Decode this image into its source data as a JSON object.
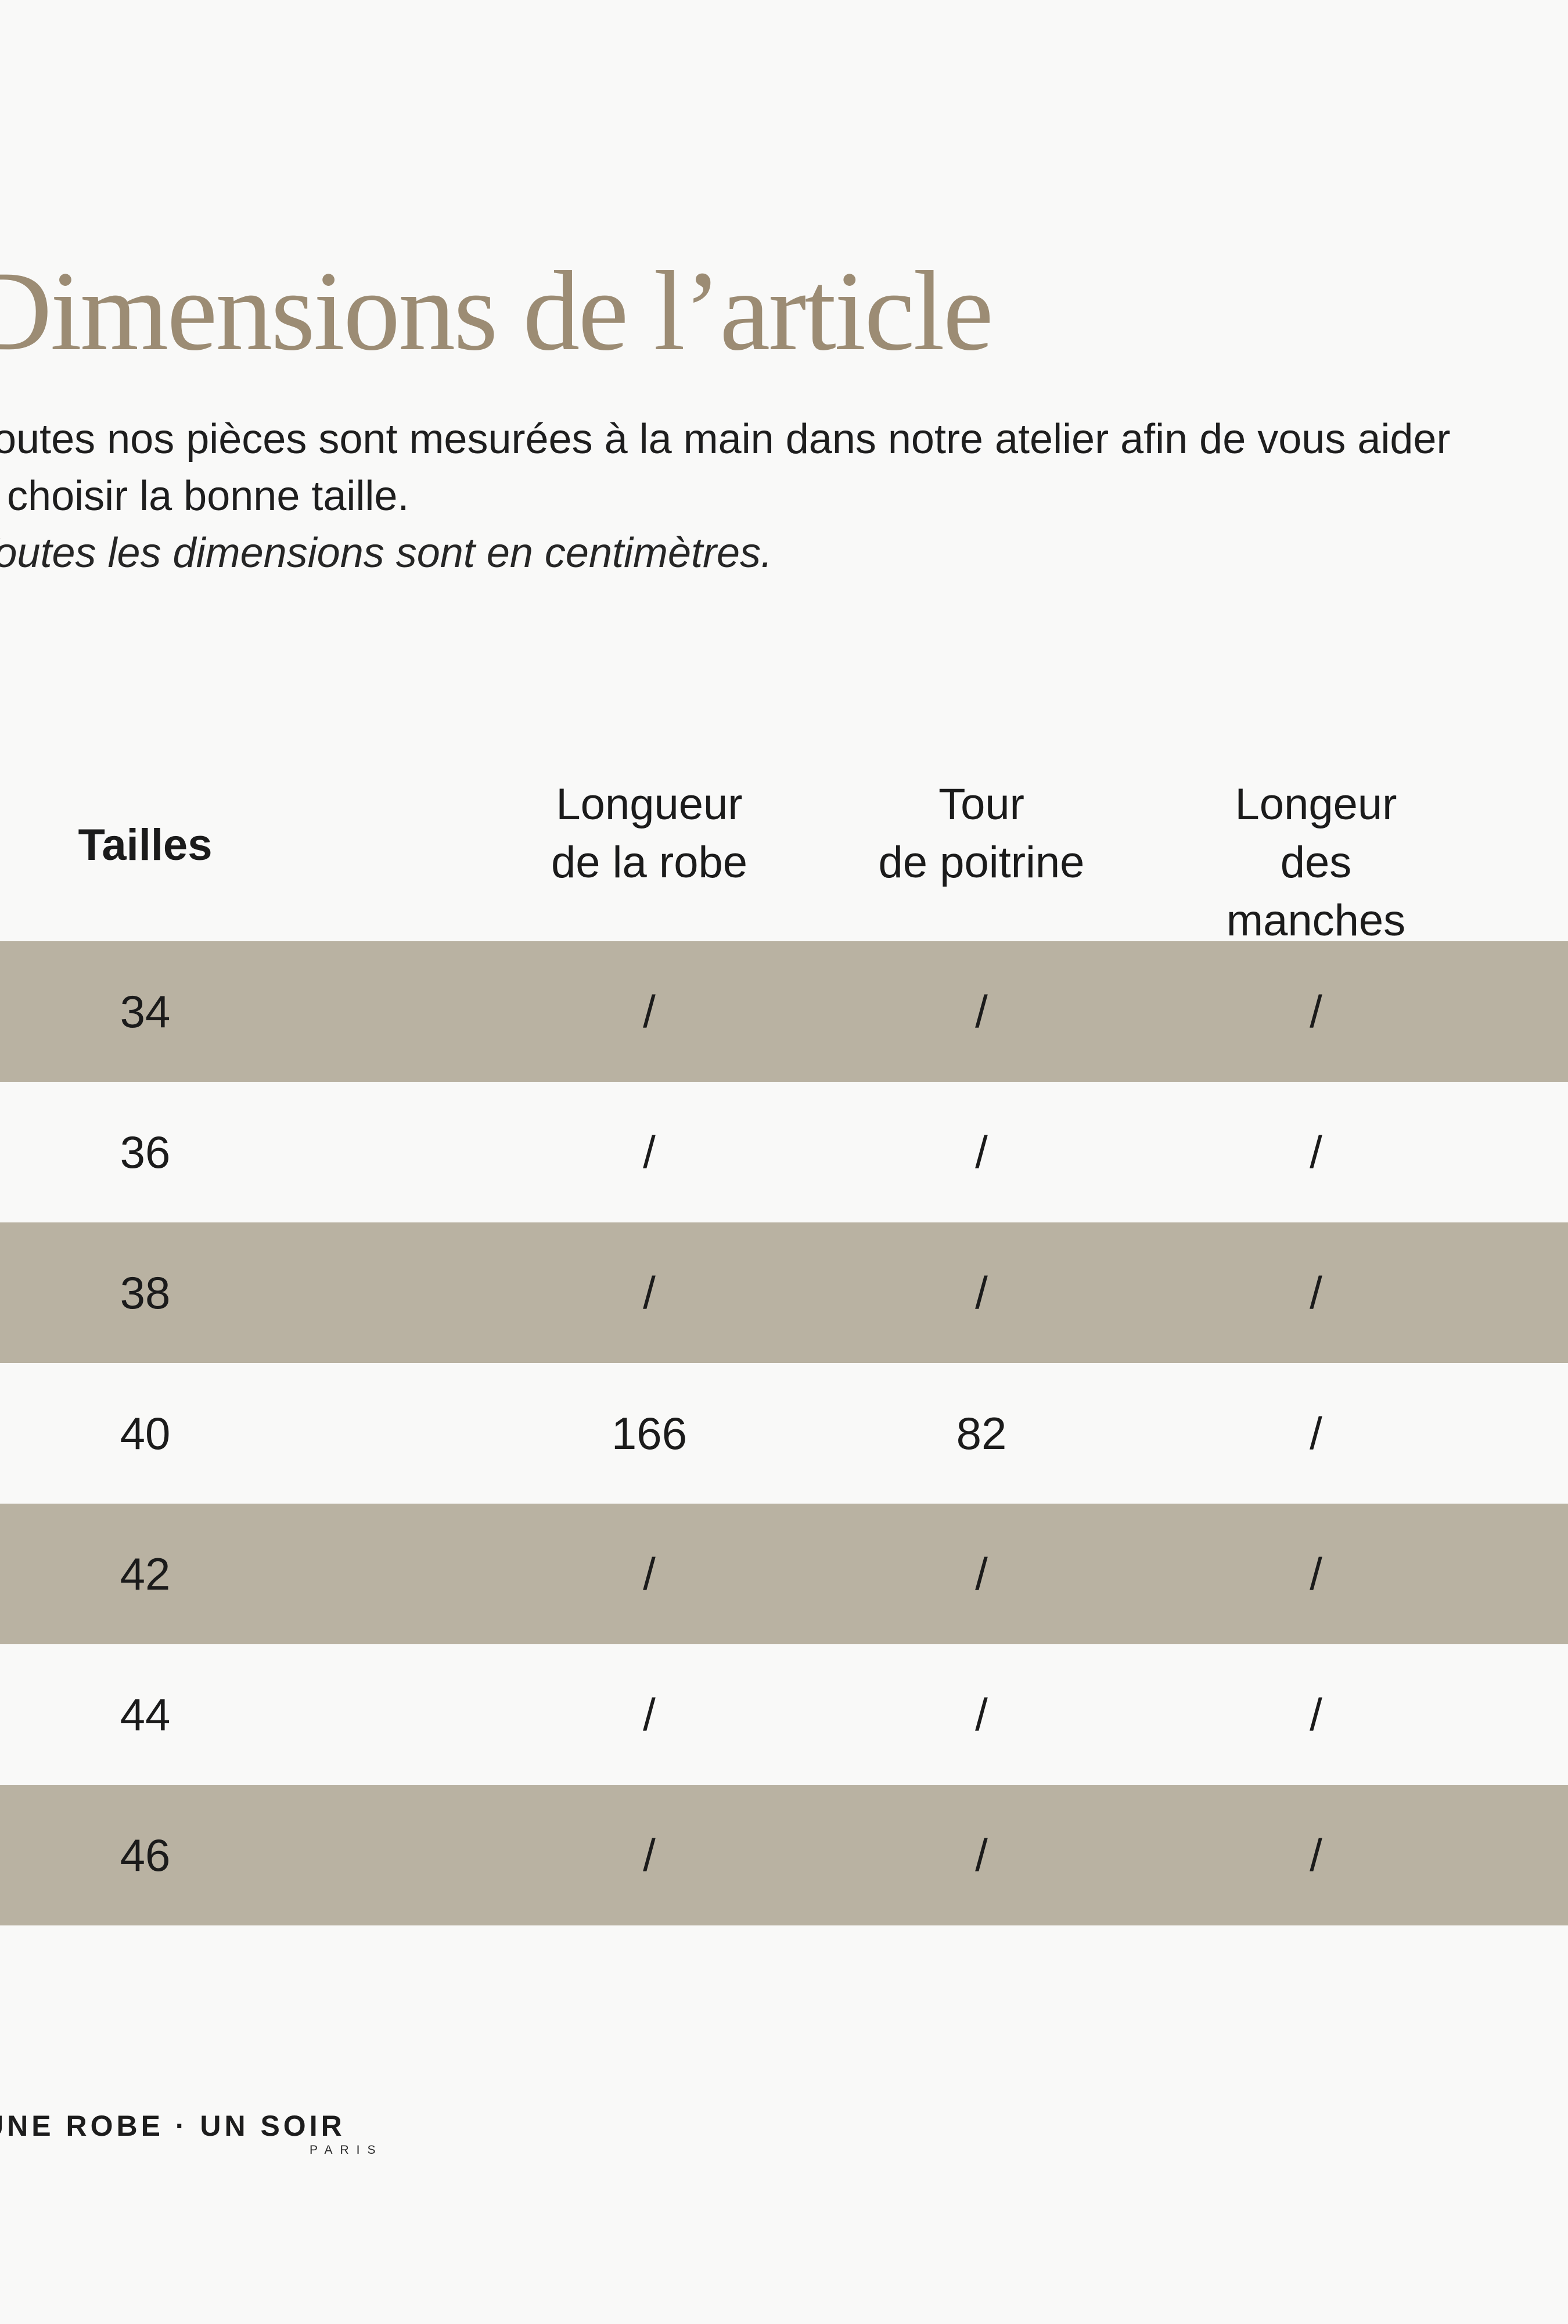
{
  "page": {
    "title": "Dimensions de l’article",
    "intro_line1": "Toutes nos pièces sont mesurées à la main dans notre atelier afin de vous aider",
    "intro_line2": "à choisir la bonne taille.",
    "note": "Toutes les dimensions sont en centimètres."
  },
  "table": {
    "columns": [
      {
        "label": "Tailles"
      },
      {
        "label": "Longueur\nde la robe"
      },
      {
        "label": "Tour\nde poitrine"
      },
      {
        "label": "Longeur\ndes manches"
      }
    ],
    "rows": [
      {
        "size": "34",
        "values": [
          "/",
          "/",
          "/"
        ]
      },
      {
        "size": "36",
        "values": [
          "/",
          "/",
          "/"
        ]
      },
      {
        "size": "38",
        "values": [
          "/",
          "/",
          "/"
        ]
      },
      {
        "size": "40",
        "values": [
          "166",
          "82",
          "/"
        ]
      },
      {
        "size": "42",
        "values": [
          "/",
          "/",
          "/"
        ]
      },
      {
        "size": "44",
        "values": [
          "/",
          "/",
          "/"
        ]
      },
      {
        "size": "46",
        "values": [
          "/",
          "/",
          "/"
        ]
      }
    ]
  },
  "brand": {
    "logo": "UNE ROBE · UN SOIR",
    "city": "PARIS"
  },
  "colors": {
    "background": "#f9f9f8",
    "row_band": "#b9b2a2",
    "title_accent": "#9c8c74",
    "text": "#1c1c1c"
  }
}
